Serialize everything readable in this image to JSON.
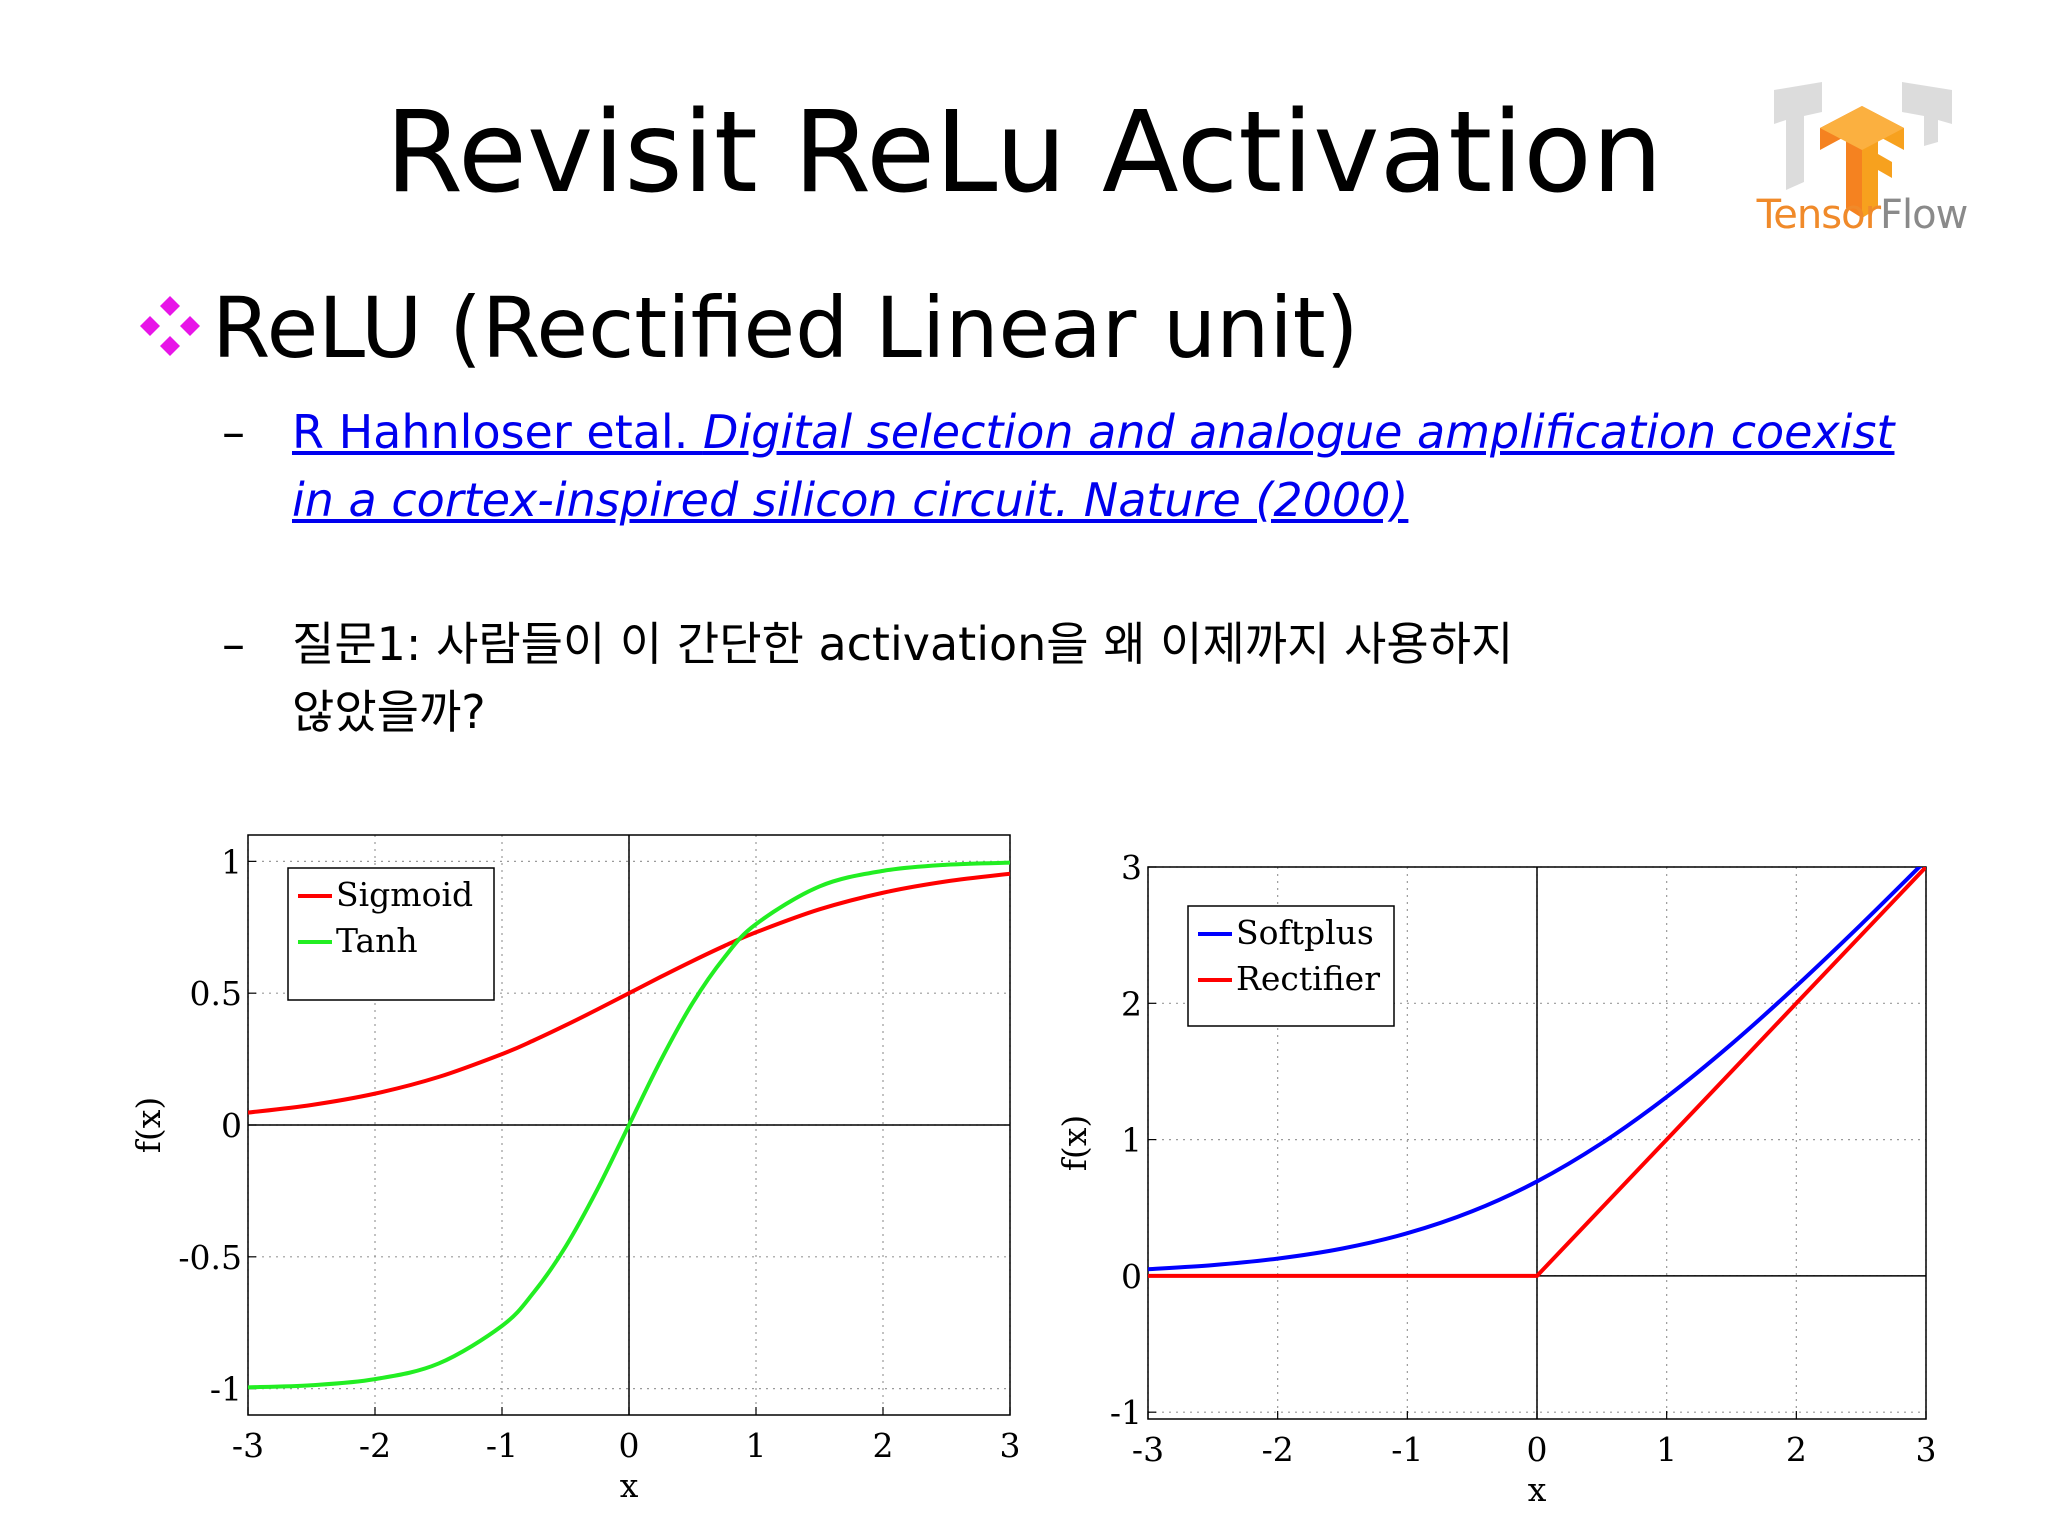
{
  "slide": {
    "title": "Revisit ReLu Activation",
    "logo_text_1": "Tensor",
    "logo_text_2": "Flow",
    "bullet": "ReLU (Rectified Linear unit)",
    "sub_dash": "–",
    "ref_plain": "R Hahnloser etal. ",
    "ref_italic_1": "Digital selection and analogue amplification coexist",
    "ref_italic_2": "in a cortex-inspired silicon circuit. Nature (2000)",
    "question_line_1": "질문1: 사람들이 이 간단한 activation을 왜 이제까지 사용하지",
    "question_line_2": "않았을까?"
  },
  "colors": {
    "bullet_magenta": "#e815e8",
    "link_blue": "#0000ee",
    "sigmoid_red": "#ff0000",
    "tanh_green": "#22ee22",
    "softplus_blue": "#0000ff",
    "rectifier_red": "#ff0000",
    "logo_orange": "#f08a2a",
    "logo_gray": "#8a8a8a"
  },
  "icons": {
    "bullet": "diamond-cluster-icon",
    "logo": "tensorflow-logo"
  },
  "chart_data": [
    {
      "type": "line",
      "xlabel": "x",
      "ylabel": "f(x)",
      "xlim": [
        -3,
        3
      ],
      "ylim": [
        -1.1,
        1.1
      ],
      "xticks": [
        -3,
        -2,
        -1,
        0,
        1,
        2,
        3
      ],
      "yticks": [
        -1,
        -0.5,
        0,
        0.5,
        1
      ],
      "xtick_labels": [
        "-3",
        "-2",
        "-1",
        "0",
        "1",
        "2",
        "3"
      ],
      "ytick_labels": [
        "-1",
        "-0.5",
        "0",
        "0.5",
        "1"
      ],
      "grid": true,
      "grid_style": "dotted",
      "legend_position": "top-left",
      "x": [
        -3,
        -2.5,
        -2,
        -1.5,
        -1,
        -0.75,
        -0.5,
        -0.25,
        0,
        0.25,
        0.5,
        0.75,
        1,
        1.5,
        2,
        2.5,
        3
      ],
      "series": [
        {
          "name": "Sigmoid",
          "color": "#ff0000",
          "values": [
            0.047,
            0.076,
            0.119,
            0.182,
            0.269,
            0.321,
            0.378,
            0.438,
            0.5,
            0.562,
            0.622,
            0.679,
            0.731,
            0.818,
            0.881,
            0.924,
            0.953
          ]
        },
        {
          "name": "Tanh",
          "color": "#22ee22",
          "values": [
            -0.995,
            -0.987,
            -0.964,
            -0.905,
            -0.762,
            -0.635,
            -0.462,
            -0.245,
            0,
            0.245,
            0.462,
            0.635,
            0.762,
            0.905,
            0.964,
            0.987,
            0.995
          ]
        }
      ]
    },
    {
      "type": "line",
      "xlabel": "x",
      "ylabel": "f(x)",
      "xlim": [
        -3,
        3
      ],
      "ylim": [
        -1.05,
        3
      ],
      "xticks": [
        -3,
        -2,
        -1,
        0,
        1,
        2,
        3
      ],
      "yticks": [
        -1,
        0,
        1,
        2,
        3
      ],
      "xtick_labels": [
        "-3",
        "-2",
        "-1",
        "0",
        "1",
        "2",
        "3"
      ],
      "ytick_labels": [
        "-1",
        "0",
        "1",
        "2",
        "3"
      ],
      "grid": true,
      "grid_style": "dotted",
      "legend_position": "top-left",
      "x": [
        -3,
        -2.5,
        -2,
        -1.5,
        -1,
        -0.5,
        0,
        0.5,
        1,
        1.5,
        2,
        2.5,
        3
      ],
      "series": [
        {
          "name": "Softplus",
          "color": "#0000ff",
          "values": [
            0.049,
            0.079,
            0.127,
            0.201,
            0.313,
            0.474,
            0.693,
            0.974,
            1.313,
            1.701,
            2.127,
            2.579,
            3.049
          ]
        },
        {
          "name": "Rectifier",
          "color": "#ff0000",
          "values": [
            0,
            0,
            0,
            0,
            0,
            0,
            0,
            0.5,
            1,
            1.5,
            2,
            2.5,
            3
          ]
        }
      ]
    }
  ]
}
